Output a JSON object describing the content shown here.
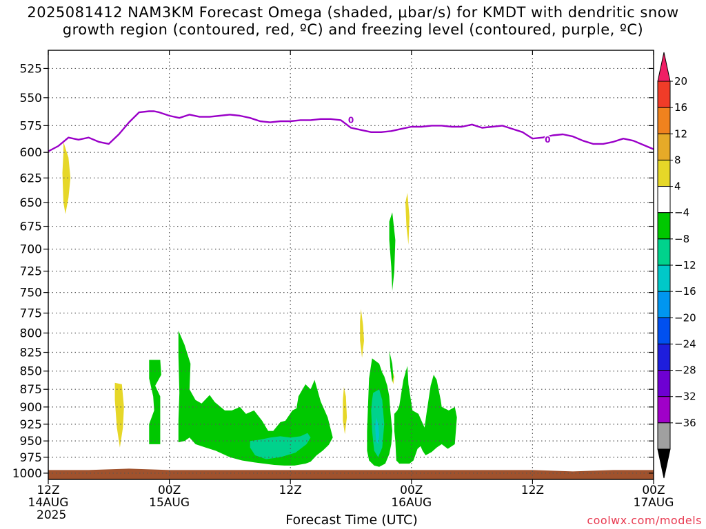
{
  "title": {
    "line1": "2025081412 NAM3KM Forecast Omega (shaded, μbar/s) for KMDT with dendritic snow",
    "line2": "growth region (contoured, red, ºC) and freezing level (contoured, purple, ºC)"
  },
  "xlabel": "Forecast Time (UTC)",
  "credit": "coolwx.com/models",
  "colors": {
    "freezing_line": "#9a00c8",
    "ground": "#a0522d",
    "grid": "#555555"
  },
  "chart_data": {
    "type": "heatmap",
    "title": "2025081412 NAM3KM Forecast Omega (shaded, μbar/s) for KMDT with dendritic snow growth region (contoured, red, ºC) and freezing level (contoured, purple, ºC)",
    "xlabel": "Forecast Time (UTC)",
    "ylabel": "",
    "x_range_hours": [
      0,
      60
    ],
    "y_range_hpa": [
      1010,
      510
    ],
    "y_scale": "log-pressure (inverted)",
    "grid": true,
    "y_ticks": [
      525,
      550,
      575,
      600,
      625,
      650,
      675,
      700,
      725,
      750,
      775,
      800,
      825,
      850,
      875,
      900,
      925,
      950,
      975,
      1000
    ],
    "x_ticks": [
      {
        "hour": 0,
        "label": "12Z",
        "date": "14AUG",
        "year": "2025"
      },
      {
        "hour": 12,
        "label": "00Z",
        "date": "15AUG",
        "year": ""
      },
      {
        "hour": 24,
        "label": "12Z",
        "date": "",
        "year": ""
      },
      {
        "hour": 36,
        "label": "00Z",
        "date": "16AUG",
        "year": ""
      },
      {
        "hour": 48,
        "label": "12Z",
        "date": "",
        "year": ""
      },
      {
        "hour": 60,
        "label": "00Z",
        "date": "17AUG",
        "year": ""
      }
    ],
    "colorbar": {
      "labels": [
        "20",
        "16",
        "12",
        "8",
        "4",
        "−4",
        "−8",
        "−12",
        "−16",
        "−20",
        "−24",
        "−28",
        "−32",
        "−36"
      ],
      "colors": [
        "#f01e64",
        "#f03c28",
        "#f0821e",
        "#e6aa28",
        "#e6d728",
        "#ffffff",
        "#00c800",
        "#00d28c",
        "#00c8c8",
        "#0096f0",
        "#0050f0",
        "#1e1edc",
        "#6e00d2",
        "#a000c8",
        "#a0a0a0",
        "#000000"
      ]
    },
    "freezing_level": {
      "label": "0",
      "hours": [
        0,
        1,
        2,
        3,
        4,
        5,
        6,
        7,
        8,
        9,
        10,
        10.5,
        11,
        12,
        13,
        14,
        15,
        16,
        17,
        18,
        19,
        20,
        21,
        22,
        23,
        24,
        25,
        26,
        27,
        28,
        29,
        30,
        31,
        32,
        33,
        34,
        35,
        36,
        37,
        38,
        39,
        40,
        41,
        42,
        43,
        44,
        45,
        46,
        47,
        48,
        49,
        50,
        51,
        52,
        53,
        54,
        55,
        56,
        57,
        58,
        59,
        60
      ],
      "pressure_hpa": [
        599,
        594,
        586,
        588,
        586,
        590,
        592,
        583,
        572,
        563,
        562,
        562,
        563,
        566,
        568,
        565,
        567,
        567,
        566,
        565,
        566,
        568,
        571,
        572,
        571,
        571,
        570,
        570,
        569,
        569,
        570,
        577,
        579,
        581,
        581,
        580,
        578,
        576,
        576,
        575,
        575,
        576,
        576,
        574,
        577,
        576,
        575,
        578,
        581,
        587,
        586,
        584,
        583,
        585,
        589,
        592,
        592,
        590,
        587,
        589,
        593,
        597
      ],
      "label_positions": [
        {
          "hour": 30,
          "pressure_hpa": 570
        },
        {
          "hour": 49.5,
          "pressure_hpa": 588
        }
      ]
    },
    "omega_regions": [
      {
        "value_class": "4 to 8",
        "color": "#e6d728",
        "hours": [
          1.5,
          2.0,
          2.2,
          2.0,
          1.7,
          1.5,
          1.4,
          1.5
        ],
        "pressure_hpa": [
          590,
          605,
          625,
          645,
          662,
          650,
          620,
          600
        ]
      },
      {
        "value_class": "4 to 8",
        "color": "#e6d728",
        "hours": [
          6.6,
          7.3,
          7.5,
          7.4,
          7.1,
          6.8,
          6.6
        ],
        "pressure_hpa": [
          866,
          868,
          900,
          930,
          960,
          930,
          890
        ]
      },
      {
        "value_class": "4 to 8",
        "color": "#e6d728",
        "hours": [
          29.3,
          29.5,
          29.6,
          29.4,
          29.2,
          29.2
        ],
        "pressure_hpa": [
          872,
          885,
          915,
          940,
          920,
          890
        ]
      },
      {
        "value_class": "4 to 8",
        "color": "#e6d728",
        "hours": [
          31.0,
          31.2,
          31.3,
          31.1,
          30.9,
          30.9
        ],
        "pressure_hpa": [
          770,
          790,
          810,
          832,
          810,
          785
        ]
      },
      {
        "value_class": "4 to 8",
        "color": "#e6d728",
        "hours": [
          35.6,
          35.8,
          35.7,
          35.5,
          35.4
        ],
        "pressure_hpa": [
          640,
          665,
          695,
          675,
          650
        ]
      },
      {
        "value_class": "4 to 8",
        "color": "#e6d728",
        "hours": [
          34.1,
          34.3,
          34.2,
          34.0
        ],
        "pressure_hpa": [
          848,
          858,
          868,
          858
        ]
      },
      {
        "value_class": "-4 to -8",
        "color": "#00c800",
        "hours": [
          34.1,
          34.4,
          34.3,
          34.1,
          34.0,
          33.8,
          33.8
        ],
        "pressure_hpa": [
          660,
          690,
          725,
          748,
          720,
          690,
          670
        ]
      },
      {
        "value_class": "-4 to -8",
        "color": "#00c800",
        "hours": [
          10.0,
          11.1,
          11.2,
          10.6,
          11.1,
          11.1,
          10.0,
          10.0,
          10.5,
          10.4,
          10.0
        ],
        "pressure_hpa": [
          835,
          835,
          855,
          870,
          885,
          955,
          955,
          925,
          905,
          885,
          860
        ]
      },
      {
        "value_class": "-4 to -8",
        "color": "#00c800",
        "hours": [
          12.9,
          13.5,
          14.1,
          14.0,
          14.6,
          15.2,
          16.0,
          16.5,
          17.5,
          18.2,
          19.0,
          19.6,
          20.4,
          21.2,
          21.8,
          22.3,
          23.0,
          23.5,
          24.2,
          24.6,
          24.8,
          25.0,
          25.5,
          26.0,
          26.4,
          27.0,
          27.7,
          28.2,
          27.8,
          27.2,
          26.6,
          26.0,
          25.5,
          24.4,
          23.4,
          22.4,
          21.4,
          20.4,
          19.2,
          18.0,
          16.6,
          15.6,
          14.6,
          14.0,
          13.5,
          12.9,
          12.9,
          13.0,
          12.9
        ],
        "pressure_hpa": [
          797,
          815,
          840,
          875,
          890,
          895,
          883,
          893,
          905,
          905,
          900,
          910,
          905,
          920,
          935,
          935,
          922,
          920,
          905,
          902,
          885,
          880,
          868,
          875,
          862,
          892,
          915,
          945,
          956,
          965,
          972,
          982,
          985,
          988,
          988,
          987,
          985,
          983,
          980,
          975,
          965,
          960,
          955,
          945,
          950,
          952,
          920,
          880,
          830
        ]
      },
      {
        "value_class": "-4 to -8",
        "color": "#00c800",
        "hours": [
          32.1,
          32.8,
          33.1,
          33.3,
          33.6,
          33.8,
          33.9,
          34.1,
          34.0,
          33.8,
          33.4,
          32.8,
          32.3,
          31.8,
          31.6,
          31.6,
          31.7,
          31.8
        ],
        "pressure_hpa": [
          833,
          840,
          852,
          857,
          870,
          885,
          905,
          935,
          955,
          970,
          985,
          990,
          988,
          980,
          965,
          935,
          895,
          860
        ]
      },
      {
        "value_class": "-4 to -8",
        "color": "#00c800",
        "hours": [
          33.8,
          34.1,
          34.2,
          34.1,
          33.9
        ],
        "pressure_hpa": [
          823,
          840,
          858,
          865,
          845
        ]
      },
      {
        "value_class": "-4 to -8",
        "color": "#00c800",
        "hours": [
          34.3,
          34.6,
          34.8,
          35.2,
          35.6,
          35.7,
          36.1,
          36.7,
          36.9,
          37.3,
          37.5,
          37.9,
          38.2,
          38.5,
          38.9,
          39.0,
          39.7,
          40.3,
          40.5,
          40.3,
          39.6,
          39.0,
          38.5,
          38.0,
          37.4,
          37.1,
          36.9,
          36.6,
          36.2,
          35.8,
          35.3,
          34.8,
          34.5,
          34.4,
          34.3
        ],
        "pressure_hpa": [
          910,
          905,
          898,
          862,
          843,
          868,
          905,
          910,
          917,
          930,
          908,
          870,
          855,
          862,
          890,
          900,
          905,
          900,
          915,
          955,
          962,
          955,
          960,
          967,
          972,
          965,
          958,
          962,
          980,
          985,
          985,
          985,
          980,
          950,
          935
        ]
      },
      {
        "value_class": "-8 to -12",
        "color": "#00d28c",
        "hours": [
          32.2,
          32.8,
          33.1,
          33.3,
          33.1,
          32.7,
          32.3,
          32.1,
          32.0,
          32.1
        ],
        "pressure_hpa": [
          880,
          875,
          890,
          925,
          960,
          975,
          965,
          935,
          905,
          890
        ]
      },
      {
        "value_class": "-8 to -12",
        "color": "#00d28c",
        "hours": [
          20.0,
          21.0,
          22.0,
          23.0,
          24.0,
          25.0,
          25.7,
          26.0,
          25.6,
          24.5,
          23.0,
          21.6,
          20.5,
          20.0
        ],
        "pressure_hpa": [
          950,
          948,
          945,
          943,
          945,
          943,
          938,
          945,
          955,
          968,
          975,
          978,
          972,
          960
        ]
      },
      {
        "value_class": "-12 to -16",
        "color": "#00c8c8",
        "hours": [
          32.5,
          32.7,
          32.8,
          32.7,
          32.5,
          32.4
        ],
        "pressure_hpa": [
          915,
          925,
          940,
          955,
          950,
          930
        ]
      }
    ],
    "ground": {
      "color": "#a0522d",
      "pressure_top_hpa": 995,
      "pressure_bottom_hpa": 1010
    }
  }
}
